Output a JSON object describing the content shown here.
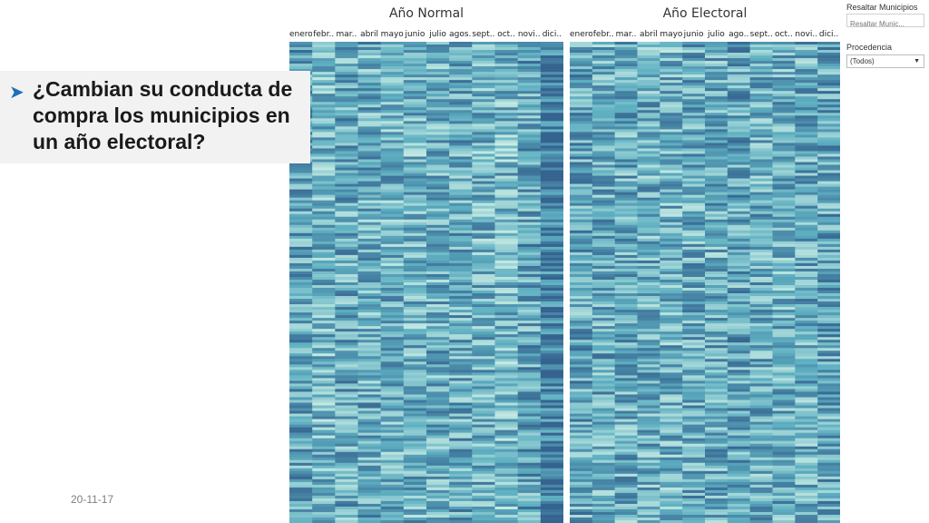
{
  "slide": {
    "question": "¿Cambian su conducta de compra los municipios en un año electoral?",
    "bullet_icon": "arrow-bullet-icon",
    "date": "20-11-17"
  },
  "filters": {
    "highlight_label": "Resaltar Municipios",
    "highlight_placeholder": "Resaltar Munic...",
    "source_label": "Procedencia",
    "source_value": "(Todos)",
    "dropdown_icon": "chevron-down-icon"
  },
  "colors": {
    "low": "#c9ece4",
    "mid": "#5fb0c2",
    "high": "#35638f"
  },
  "chart_data": [
    {
      "type": "heatmap",
      "title": "Año Normal",
      "x_tick_labels": [
        "enero",
        "febr..",
        "mar..",
        "abril",
        "mayo",
        "junio",
        "julio",
        "agos..",
        "sept..",
        "oct..",
        "novi..",
        "dici.."
      ],
      "column_mean_intensity": [
        0.55,
        0.45,
        0.52,
        0.5,
        0.48,
        0.46,
        0.5,
        0.52,
        0.45,
        0.42,
        0.55,
        0.85
      ]
    },
    {
      "type": "heatmap",
      "title": "Año Electoral",
      "x_tick_labels": [
        "enero",
        "febr..",
        "mar..",
        "abril",
        "mayo",
        "junio",
        "julio",
        "ago..",
        "sept..",
        "oct..",
        "novi..",
        "dici.."
      ],
      "column_mean_intensity": [
        0.55,
        0.5,
        0.5,
        0.48,
        0.46,
        0.5,
        0.5,
        0.55,
        0.5,
        0.48,
        0.5,
        0.55
      ]
    }
  ]
}
